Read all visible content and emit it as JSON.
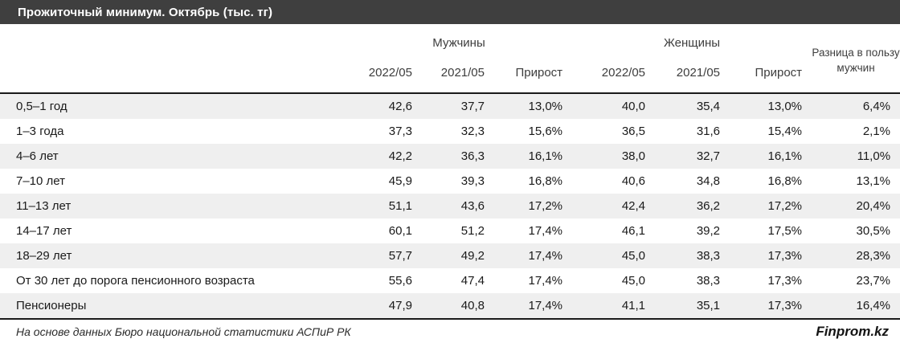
{
  "title": "Прожиточный минимум. Октябрь (тыс. тг)",
  "colors": {
    "titlebar_bg": "#3f3f3f",
    "titlebar_text": "#ffffff",
    "row_stripe": "#efefef",
    "border": "#1a1a1a",
    "header_text": "#3d3d3d",
    "body_text": "#1a1a1a"
  },
  "chart_data": {
    "type": "table",
    "title": "Прожиточный минимум. Октябрь (тыс. тг)",
    "column_groups": {
      "men": "Мужчины",
      "women": "Женщины",
      "diff": "Разница в пользу мужчин"
    },
    "sub_headers": [
      "2022/05",
      "2021/05",
      "Прирост",
      "2022/05",
      "2021/05",
      "Прирост"
    ],
    "rows": [
      {
        "label": "0,5–1 год",
        "values": [
          "42,6",
          "37,7",
          "13,0%",
          "40,0",
          "35,4",
          "13,0%",
          "6,4%"
        ]
      },
      {
        "label": "1–3 года",
        "values": [
          "37,3",
          "32,3",
          "15,6%",
          "36,5",
          "31,6",
          "15,4%",
          "2,1%"
        ]
      },
      {
        "label": "4–6 лет",
        "values": [
          "42,2",
          "36,3",
          "16,1%",
          "38,0",
          "32,7",
          "16,1%",
          "11,0%"
        ]
      },
      {
        "label": "7–10 лет",
        "values": [
          "45,9",
          "39,3",
          "16,8%",
          "40,6",
          "34,8",
          "16,8%",
          "13,1%"
        ]
      },
      {
        "label": "11–13 лет",
        "values": [
          "51,1",
          "43,6",
          "17,2%",
          "42,4",
          "36,2",
          "17,2%",
          "20,4%"
        ]
      },
      {
        "label": "14–17 лет",
        "values": [
          "60,1",
          "51,2",
          "17,4%",
          "46,1",
          "39,2",
          "17,5%",
          "30,5%"
        ]
      },
      {
        "label": "18–29 лет",
        "values": [
          "57,7",
          "49,2",
          "17,4%",
          "45,0",
          "38,3",
          "17,3%",
          "28,3%"
        ]
      },
      {
        "label": "От 30 лет до порога пенсионного возраста",
        "values": [
          "55,6",
          "47,4",
          "17,4%",
          "45,0",
          "38,3",
          "17,3%",
          "23,7%"
        ]
      },
      {
        "label": "Пенсионеры",
        "values": [
          "47,9",
          "40,8",
          "17,4%",
          "41,1",
          "35,1",
          "17,3%",
          "16,4%"
        ]
      }
    ]
  },
  "footer": {
    "source": "На основе данных Бюро национальной статистики АСПиР РК",
    "brand": "Finprom.kz"
  }
}
